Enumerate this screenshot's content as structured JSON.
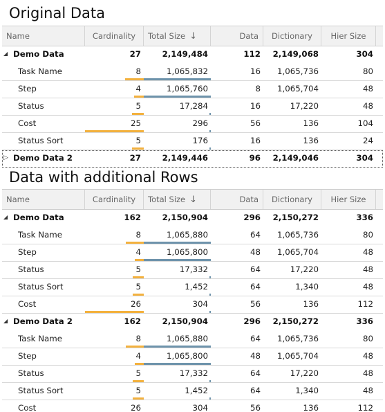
{
  "title1": "Original Data",
  "title2": "Data with additional Rows",
  "columns": {
    "name": "Name",
    "cardinality": "Cardinality",
    "total_size": "Total Size",
    "data": "Data",
    "dictionary": "Dictionary",
    "hier_size": "Hier Size",
    "sort_icon": "sort-descending-icon"
  },
  "colors": {
    "card_bar": "#f3b13e",
    "size_bar": "#6e93ab"
  },
  "table1": [
    {
      "type": "group",
      "expanded": true,
      "name": "Demo Data",
      "cardinality": "27",
      "total_size": "2,149,484",
      "data": "112",
      "dictionary": "2,149,068",
      "hier_size": "304"
    },
    {
      "type": "child",
      "name": "Task Name",
      "cardinality": "8",
      "total_size": "1,065,832",
      "data": "16",
      "dictionary": "1,065,736",
      "hier_size": "80",
      "card_frac": 0.32,
      "size_frac": 1.0
    },
    {
      "type": "child",
      "name": "Step",
      "cardinality": "4",
      "total_size": "1,065,760",
      "data": "8",
      "dictionary": "1,065,704",
      "hier_size": "48",
      "card_frac": 0.16,
      "size_frac": 1.0
    },
    {
      "type": "child",
      "name": "Status",
      "cardinality": "5",
      "total_size": "17,284",
      "data": "16",
      "dictionary": "17,220",
      "hier_size": "48",
      "card_frac": 0.2,
      "size_frac": 0.02
    },
    {
      "type": "child",
      "name": "Cost",
      "cardinality": "25",
      "total_size": "296",
      "data": "56",
      "dictionary": "136",
      "hier_size": "104",
      "card_frac": 1.0,
      "size_frac": 0.0
    },
    {
      "type": "child",
      "name": "Status Sort",
      "cardinality": "5",
      "total_size": "176",
      "data": "16",
      "dictionary": "136",
      "hier_size": "24",
      "card_frac": 0.2,
      "size_frac": 0.0
    },
    {
      "type": "group",
      "expanded": false,
      "name": "Demo Data 2",
      "cardinality": "27",
      "total_size": "2,149,446",
      "data": "96",
      "dictionary": "2,149,046",
      "hier_size": "304"
    }
  ],
  "table2": [
    {
      "type": "group",
      "expanded": true,
      "name": "Demo Data",
      "cardinality": "162",
      "total_size": "2,150,904",
      "data": "296",
      "dictionary": "2,150,272",
      "hier_size": "336"
    },
    {
      "type": "child",
      "name": "Task Name",
      "cardinality": "8",
      "total_size": "1,065,880",
      "data": "64",
      "dictionary": "1,065,736",
      "hier_size": "80",
      "card_frac": 0.31,
      "size_frac": 1.0
    },
    {
      "type": "child",
      "name": "Step",
      "cardinality": "4",
      "total_size": "1,065,800",
      "data": "48",
      "dictionary": "1,065,704",
      "hier_size": "48",
      "card_frac": 0.15,
      "size_frac": 1.0
    },
    {
      "type": "child",
      "name": "Status",
      "cardinality": "5",
      "total_size": "17,332",
      "data": "64",
      "dictionary": "17,220",
      "hier_size": "48",
      "card_frac": 0.19,
      "size_frac": 0.02
    },
    {
      "type": "child",
      "name": "Status Sort",
      "cardinality": "5",
      "total_size": "1,452",
      "data": "64",
      "dictionary": "1,340",
      "hier_size": "48",
      "card_frac": 0.19,
      "size_frac": 0.0
    },
    {
      "type": "child",
      "name": "Cost",
      "cardinality": "26",
      "total_size": "304",
      "data": "56",
      "dictionary": "136",
      "hier_size": "112",
      "card_frac": 1.0,
      "size_frac": 0.0
    },
    {
      "type": "group",
      "expanded": true,
      "name": "Demo Data 2",
      "cardinality": "162",
      "total_size": "2,150,904",
      "data": "296",
      "dictionary": "2,150,272",
      "hier_size": "336"
    },
    {
      "type": "child",
      "name": "Task Name",
      "cardinality": "8",
      "total_size": "1,065,880",
      "data": "64",
      "dictionary": "1,065,736",
      "hier_size": "80",
      "card_frac": 0.31,
      "size_frac": 1.0
    },
    {
      "type": "child",
      "name": "Step",
      "cardinality": "4",
      "total_size": "1,065,800",
      "data": "48",
      "dictionary": "1,065,704",
      "hier_size": "48",
      "card_frac": 0.15,
      "size_frac": 1.0
    },
    {
      "type": "child",
      "name": "Status",
      "cardinality": "5",
      "total_size": "17,332",
      "data": "64",
      "dictionary": "17,220",
      "hier_size": "48",
      "card_frac": 0.19,
      "size_frac": 0.02
    },
    {
      "type": "child",
      "name": "Status Sort",
      "cardinality": "5",
      "total_size": "1,452",
      "data": "64",
      "dictionary": "1,340",
      "hier_size": "48",
      "card_frac": 0.19,
      "size_frac": 0.0
    },
    {
      "type": "child",
      "name": "Cost",
      "cardinality": "26",
      "total_size": "304",
      "data": "56",
      "dictionary": "136",
      "hier_size": "112",
      "card_frac": 1.0,
      "size_frac": 0.0
    }
  ]
}
